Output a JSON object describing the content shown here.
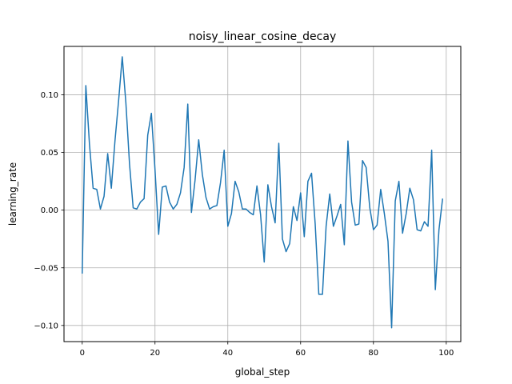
{
  "chart_data": {
    "type": "line",
    "title": "noisy_linear_cosine_decay",
    "xlabel": "global_step",
    "ylabel": "learning_rate",
    "xlim": [
      -5,
      104
    ],
    "ylim": [
      -0.114,
      0.142
    ],
    "xticks": [
      0,
      20,
      40,
      60,
      80,
      100
    ],
    "xtick_labels": [
      "0",
      "20",
      "40",
      "60",
      "80",
      "100"
    ],
    "yticks": [
      -0.1,
      -0.05,
      0.0,
      0.05,
      0.1
    ],
    "ytick_labels": [
      "−0.10",
      "−0.05",
      "0.00",
      "0.05",
      "0.10"
    ],
    "grid": true,
    "line_color": "#1f77b4",
    "series": [
      {
        "x": [
          0,
          1,
          2,
          3,
          4,
          5,
          6,
          7,
          8,
          9,
          10,
          11,
          12,
          13,
          14,
          15,
          16,
          17,
          18,
          19,
          20,
          21,
          22,
          23,
          24,
          25,
          26,
          27,
          28,
          29,
          30,
          31,
          32,
          33,
          34,
          35,
          36,
          37,
          38,
          39,
          40,
          41,
          42,
          43,
          44,
          45,
          46,
          47,
          48,
          49,
          50,
          51,
          52,
          53,
          54,
          55,
          56,
          57,
          58,
          59,
          60,
          61,
          62,
          63,
          64,
          65,
          66,
          67,
          68,
          69,
          70,
          71,
          72,
          73,
          74,
          75,
          76,
          77,
          78,
          79,
          80,
          81,
          82,
          83,
          84,
          85,
          86,
          87,
          88,
          89,
          90,
          91,
          92,
          93,
          94,
          95,
          96,
          97,
          98,
          99
        ],
        "values": [
          -0.055,
          0.108,
          0.057,
          0.019,
          0.018,
          0.001,
          0.012,
          0.049,
          0.019,
          0.06,
          0.095,
          0.133,
          0.093,
          0.04,
          0.002,
          0.001,
          0.007,
          0.01,
          0.065,
          0.084,
          0.035,
          -0.021,
          0.02,
          0.021,
          0.007,
          0.001,
          0.005,
          0.015,
          0.037,
          0.092,
          -0.002,
          0.026,
          0.061,
          0.031,
          0.011,
          0.001,
          0.003,
          0.004,
          0.024,
          0.052,
          -0.014,
          -0.003,
          0.025,
          0.016,
          0.001,
          0.001,
          -0.002,
          -0.004,
          0.021,
          -0.004,
          -0.045,
          0.022,
          0.003,
          -0.011,
          0.058,
          -0.025,
          -0.036,
          -0.029,
          0.003,
          -0.009,
          0.015,
          -0.023,
          0.025,
          0.032,
          -0.012,
          -0.073,
          -0.073,
          -0.014,
          0.014,
          -0.014,
          -0.005,
          0.005,
          -0.03,
          0.06,
          0.007,
          -0.013,
          -0.012,
          0.043,
          0.037,
          0.002,
          -0.017,
          -0.013,
          0.018,
          -0.003,
          -0.027,
          -0.102,
          0.008,
          0.025,
          -0.02,
          -0.003,
          0.019,
          0.009,
          -0.017,
          -0.018,
          -0.01,
          -0.014,
          0.052,
          -0.069,
          -0.017,
          0.01
        ]
      }
    ]
  }
}
